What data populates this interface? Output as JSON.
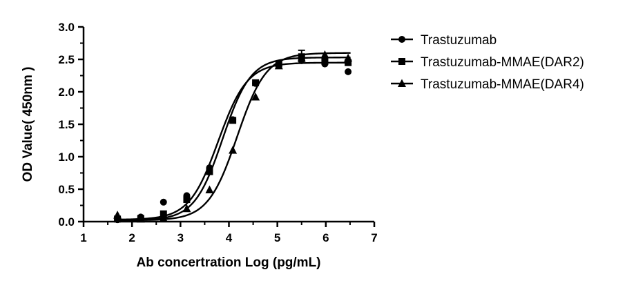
{
  "chart_data": {
    "type": "scatter",
    "title": "",
    "xlabel": "Ab concertration Log (pg/mL)",
    "ylabel": "OD Value( 450nm )",
    "xlim": [
      1,
      7
    ],
    "ylim": [
      0,
      3.0
    ],
    "x_ticks": [
      1,
      2,
      3,
      4,
      5,
      6,
      7
    ],
    "x_tick_labels": [
      "1",
      "2",
      "3",
      "4",
      "5",
      "6",
      "7"
    ],
    "y_ticks": [
      0,
      0.5,
      1.0,
      1.5,
      2.0,
      2.5,
      3.0
    ],
    "y_tick_labels": [
      "0.0",
      "0.5",
      "1.0",
      "1.5",
      "2.0",
      "2.5",
      "3.0"
    ],
    "grid": false,
    "legend_position": "top-right",
    "series": [
      {
        "name": "Trastuzumab",
        "marker": "circle",
        "x": [
          1.7,
          2.18,
          2.65,
          3.13,
          3.6,
          4.08,
          4.55,
          5.03,
          5.5,
          5.98,
          6.46
        ],
        "y": [
          0.03,
          0.07,
          0.3,
          0.4,
          0.83,
          1.57,
          2.13,
          2.42,
          2.48,
          2.43,
          2.31
        ],
        "fit": {
          "bottom": 0.03,
          "top": 2.45,
          "logEC50": 3.78,
          "hill": 1.45
        }
      },
      {
        "name": "Trastuzumab-MMAE(DAR2)",
        "marker": "square",
        "x": [
          1.7,
          2.18,
          2.65,
          3.13,
          3.6,
          4.08,
          4.55,
          5.03,
          5.5,
          5.98,
          6.46
        ],
        "y": [
          0.04,
          0.05,
          0.12,
          0.34,
          0.77,
          1.56,
          2.14,
          2.43,
          2.54,
          2.47,
          2.45
        ],
        "y_err": [
          0,
          0,
          0,
          0,
          0,
          0,
          0,
          0,
          0.1,
          0,
          0
        ],
        "fit": {
          "bottom": 0.02,
          "top": 2.53,
          "logEC50": 3.87,
          "hill": 1.5
        }
      },
      {
        "name": "Trastuzumab-MMAE(DAR4)",
        "marker": "triangle",
        "x": [
          1.7,
          2.18,
          2.65,
          3.13,
          3.6,
          4.08,
          4.55,
          5.03,
          5.5,
          5.98,
          6.46
        ],
        "y": [
          0.1,
          0.04,
          0.05,
          0.2,
          0.49,
          1.1,
          1.92,
          2.4,
          2.52,
          2.57,
          2.52
        ],
        "fit": {
          "bottom": 0.02,
          "top": 2.6,
          "logEC50": 4.17,
          "hill": 1.45
        }
      }
    ]
  }
}
